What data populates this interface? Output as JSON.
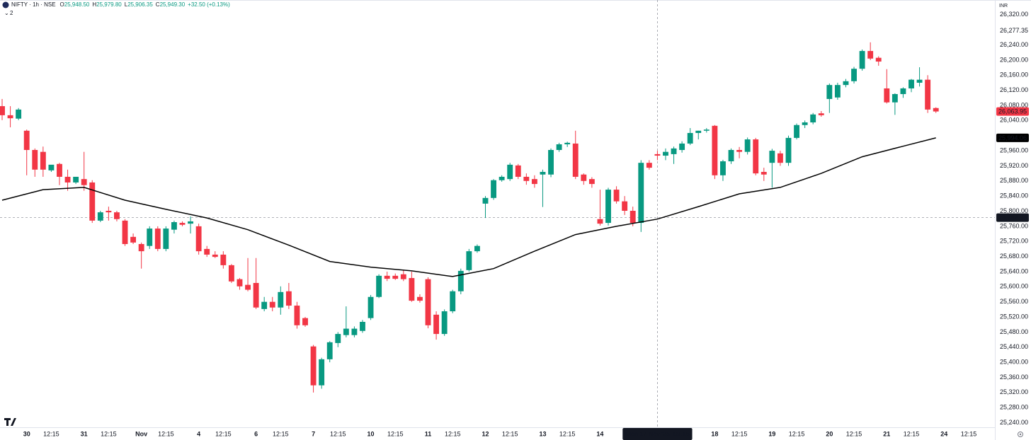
{
  "chart_data": {
    "type": "candlestick",
    "header": {
      "symbol": "NIFTY · 1h · NSE",
      "values": [
        {
          "key": "O",
          "value": "25,948.50"
        },
        {
          "key": "H",
          "value": "25,979.80"
        },
        {
          "key": "L",
          "value": "25,906.35"
        },
        {
          "key": "C",
          "value": "25,949.30"
        }
      ],
      "change": "+32.50 (+0.13%)",
      "indicators": "2"
    },
    "currency": "INR",
    "up_color": "#089981",
    "down_color": "#f23645",
    "open": [
      26078,
      26054,
      26045,
      26013,
      25962,
      25957,
      25908,
      25925,
      25891,
      25876,
      25885,
      25876,
      25775,
      25801,
      25797,
      25775,
      25732,
      25713,
      25708,
      25754,
      25700,
      25751,
      25769,
      25767,
      25760,
      25700,
      25685,
      25685,
      25657,
      25620,
      25605,
      25610,
      25541,
      25560,
      25545,
      25588,
      25550,
      25517,
      25442,
      25339,
      25408,
      25451,
      25472,
      25472,
      25483,
      25517,
      25573,
      25629,
      25629,
      25633,
      25623,
      25573,
      25620,
      25526,
      25475,
      25535,
      25588,
      25644,
      25694,
      25820,
      25835,
      25882,
      25885,
      25921,
      25891,
      25885,
      25897,
      25897,
      25962,
      25977,
      25979,
      25897,
      25885,
      25779,
      25769,
      25857,
      25826,
      25801,
      25769,
      25928,
      25951,
      25947,
      25951,
      25962,
      25979,
      26007,
      26013,
      26026,
      25895,
      25932,
      25962,
      25957,
      25990,
      25904,
      25928,
      25953,
      25928,
      25994,
      26028,
      26035,
      26059,
      26097,
      26101,
      26134,
      26144,
      26177,
      26224,
      26206,
      26125,
      26088,
      26110,
      26125,
      26140,
      26148,
      26073
    ],
    "high": [
      26097,
      26078,
      26073,
      26016,
      25966,
      25971,
      25915,
      25928,
      25910,
      25885,
      25957,
      25882,
      25801,
      25812,
      25801,
      25779,
      25741,
      25717,
      25760,
      25760,
      25760,
      25775,
      25773,
      25786,
      25767,
      25708,
      25694,
      25694,
      25660,
      25623,
      25676,
      25676,
      25573,
      25573,
      25601,
      25610,
      25560,
      25520,
      25446,
      25412,
      25456,
      25480,
      25548,
      25495,
      25512,
      25578,
      25633,
      25640,
      25635,
      25645,
      25640,
      25580,
      25625,
      25535,
      25540,
      25592,
      25648,
      25700,
      25712,
      25840,
      25885,
      25895,
      25928,
      25925,
      25900,
      25895,
      25910,
      25966,
      25981,
      25984,
      26013,
      25900,
      25890,
      25857,
      25862,
      25866,
      25840,
      25812,
      25935,
      25935,
      25960,
      25966,
      25971,
      25985,
      26020,
      26013,
      26020,
      26028,
      25936,
      25966,
      25970,
      25995,
      25994,
      25915,
      25965,
      25960,
      26000,
      26032,
      26040,
      26060,
      26065,
      26138,
      26140,
      26150,
      26182,
      26228,
      26247,
      26210,
      26176,
      26112,
      26128,
      26150,
      26181,
      26160,
      26075
    ],
    "low": [
      26041,
      26022,
      26041,
      25895,
      25891,
      25891,
      25904,
      25869,
      25854,
      25872,
      25854,
      25769,
      25771,
      25775,
      25773,
      25708,
      25713,
      25648,
      25700,
      25694,
      25694,
      25741,
      25760,
      25741,
      25685,
      25679,
      25676,
      25648,
      25610,
      25592,
      25588,
      25541,
      25535,
      25535,
      25526,
      25541,
      25489,
      25494,
      25320,
      25330,
      25400,
      25440,
      25466,
      25466,
      25478,
      25512,
      25570,
      25615,
      25618,
      25615,
      25560,
      25558,
      25490,
      25460,
      25470,
      25530,
      25580,
      25640,
      25690,
      25782,
      25830,
      25878,
      25880,
      25885,
      25870,
      25862,
      25811,
      25890,
      25957,
      25970,
      25885,
      25870,
      25862,
      25762,
      25762,
      25820,
      25790,
      25760,
      25745,
      25910,
      25935,
      25935,
      25925,
      25955,
      25975,
      25990,
      26008,
      25885,
      25880,
      25925,
      25940,
      25950,
      25895,
      25880,
      25862,
      25920,
      25920,
      25990,
      26020,
      26030,
      26050,
      26060,
      26095,
      26128,
      26138,
      26172,
      26200,
      26185,
      26085,
      26055,
      26100,
      26115,
      26130,
      26060,
      26060
    ],
    "close": [
      26054,
      26046,
      26069,
      25962,
      25910,
      25910,
      25923,
      25891,
      25876,
      25891,
      25869,
      25775,
      25797,
      25797,
      25779,
      25713,
      25717,
      25694,
      25754,
      25700,
      25754,
      25771,
      25764,
      25773,
      25694,
      25685,
      25679,
      25657,
      25614,
      25601,
      25592,
      25545,
      25560,
      25545,
      25586,
      25550,
      25498,
      25498,
      25339,
      25408,
      25453,
      25475,
      25489,
      25489,
      25507,
      25573,
      25629,
      25621,
      25621,
      25620,
      25563,
      25563,
      25498,
      25475,
      25535,
      25588,
      25642,
      25694,
      25708,
      25835,
      25882,
      25891,
      25923,
      25891,
      25880,
      25872,
      25904,
      25962,
      25977,
      25981,
      25891,
      25880,
      25872,
      25767,
      25857,
      25826,
      25801,
      25769,
      25928,
      25915,
      25947,
      25957,
      25966,
      25979,
      26007,
      26013,
      26016,
      25895,
      25932,
      25962,
      25957,
      25990,
      25900,
      25897,
      25960,
      25928,
      25994,
      26028,
      26035,
      26056,
      26054,
      26134,
      26134,
      26144,
      26177,
      26224,
      26204,
      26196,
      26088,
      26110,
      26125,
      26148,
      26148,
      26069,
      26063.95
    ],
    "moving_average": {
      "color": "#000000",
      "x": [
        0,
        5,
        10,
        15,
        20,
        25,
        30,
        35,
        40,
        45,
        50,
        55,
        60,
        65,
        70,
        75,
        80,
        85,
        90,
        95,
        100,
        105,
        110,
        114
      ],
      "values": [
        25829,
        25857,
        25863,
        25829,
        25805,
        25782,
        25751,
        25710,
        25667,
        25652,
        25642,
        25627,
        25648,
        25694,
        25738,
        25760,
        25779,
        25812,
        25846,
        25863,
        25900,
        25944,
        25972,
        25994.06
      ]
    },
    "xlim": [
      -0.26,
      121.2
    ],
    "ylim": [
      25228,
      26359
    ],
    "xticks": [
      {
        "value": 3,
        "label": "30"
      },
      {
        "value": 6,
        "label": "12:15"
      },
      {
        "value": 10,
        "label": "31"
      },
      {
        "value": 13,
        "label": "12:15"
      },
      {
        "value": 17,
        "label": "Nov"
      },
      {
        "value": 20,
        "label": "12:15"
      },
      {
        "value": 24,
        "label": "4"
      },
      {
        "value": 27,
        "label": "12:15"
      },
      {
        "value": 31,
        "label": "6"
      },
      {
        "value": 34,
        "label": "12:15"
      },
      {
        "value": 38,
        "label": "7"
      },
      {
        "value": 41,
        "label": "12:15"
      },
      {
        "value": 45,
        "label": "10"
      },
      {
        "value": 48,
        "label": "12:15"
      },
      {
        "value": 52,
        "label": "11"
      },
      {
        "value": 55,
        "label": "12:15"
      },
      {
        "value": 59,
        "label": "12"
      },
      {
        "value": 62,
        "label": "12:15"
      },
      {
        "value": 66,
        "label": "13"
      },
      {
        "value": 69,
        "label": "12:15"
      },
      {
        "value": 73,
        "label": "14"
      },
      {
        "value": 87,
        "label": "18"
      },
      {
        "value": 90,
        "label": "12:15"
      },
      {
        "value": 94,
        "label": "19"
      },
      {
        "value": 97,
        "label": "12:15"
      },
      {
        "value": 101,
        "label": "20"
      },
      {
        "value": 104,
        "label": "12:15"
      },
      {
        "value": 108,
        "label": "21"
      },
      {
        "value": 111,
        "label": "12:15"
      },
      {
        "value": 115,
        "label": "24"
      },
      {
        "value": 118,
        "label": "12:15"
      }
    ],
    "yticks": [
      {
        "value": 26320,
        "label": "26,320.00"
      },
      {
        "value": 26240,
        "label": "26,240.00"
      },
      {
        "value": 26200,
        "label": "26,200.00"
      },
      {
        "value": 26160,
        "label": "26,160.00"
      },
      {
        "value": 26120,
        "label": "26,120.00"
      },
      {
        "value": 26080,
        "label": "26,080.00"
      },
      {
        "value": 26040,
        "label": "26,040.00"
      },
      {
        "value": 25960,
        "label": "25,960.00"
      },
      {
        "value": 25920,
        "label": "25,920.00"
      },
      {
        "value": 25880,
        "label": "25,880.00"
      },
      {
        "value": 25840,
        "label": "25,840.00"
      },
      {
        "value": 25800,
        "label": "25,800.00"
      },
      {
        "value": 25760,
        "label": "25,760.00"
      },
      {
        "value": 25720,
        "label": "25,720.00"
      },
      {
        "value": 25680,
        "label": "25,680.00"
      },
      {
        "value": 25640,
        "label": "25,640.00"
      },
      {
        "value": 25600,
        "label": "25,600.00"
      },
      {
        "value": 25560,
        "label": "25,560.00"
      },
      {
        "value": 25520,
        "label": "25,520.00"
      },
      {
        "value": 25480,
        "label": "25,480.00"
      },
      {
        "value": 25440,
        "label": "25,440.00"
      },
      {
        "value": 25400,
        "label": "25,400.00"
      },
      {
        "value": 25360,
        "label": "25,360.00"
      },
      {
        "value": 25320,
        "label": "25,320.00"
      },
      {
        "value": 25280,
        "label": "25,280.00"
      },
      {
        "value": 25240,
        "label": "25,240.00"
      }
    ],
    "grid": false,
    "axis_marker": {
      "value": 26277.35,
      "label": "26,277.35"
    },
    "price_tags": [
      {
        "value": 26063.95,
        "label": "26,063.95",
        "color": "#f23645"
      },
      {
        "value": 25994.06,
        "label": "25,994.06",
        "color": "#000000"
      }
    ],
    "crosshair": {
      "x": 80,
      "y": 25782.95,
      "price_label": "25,782.95",
      "time_label": "Mon 17 Nov '25  09:15"
    }
  }
}
